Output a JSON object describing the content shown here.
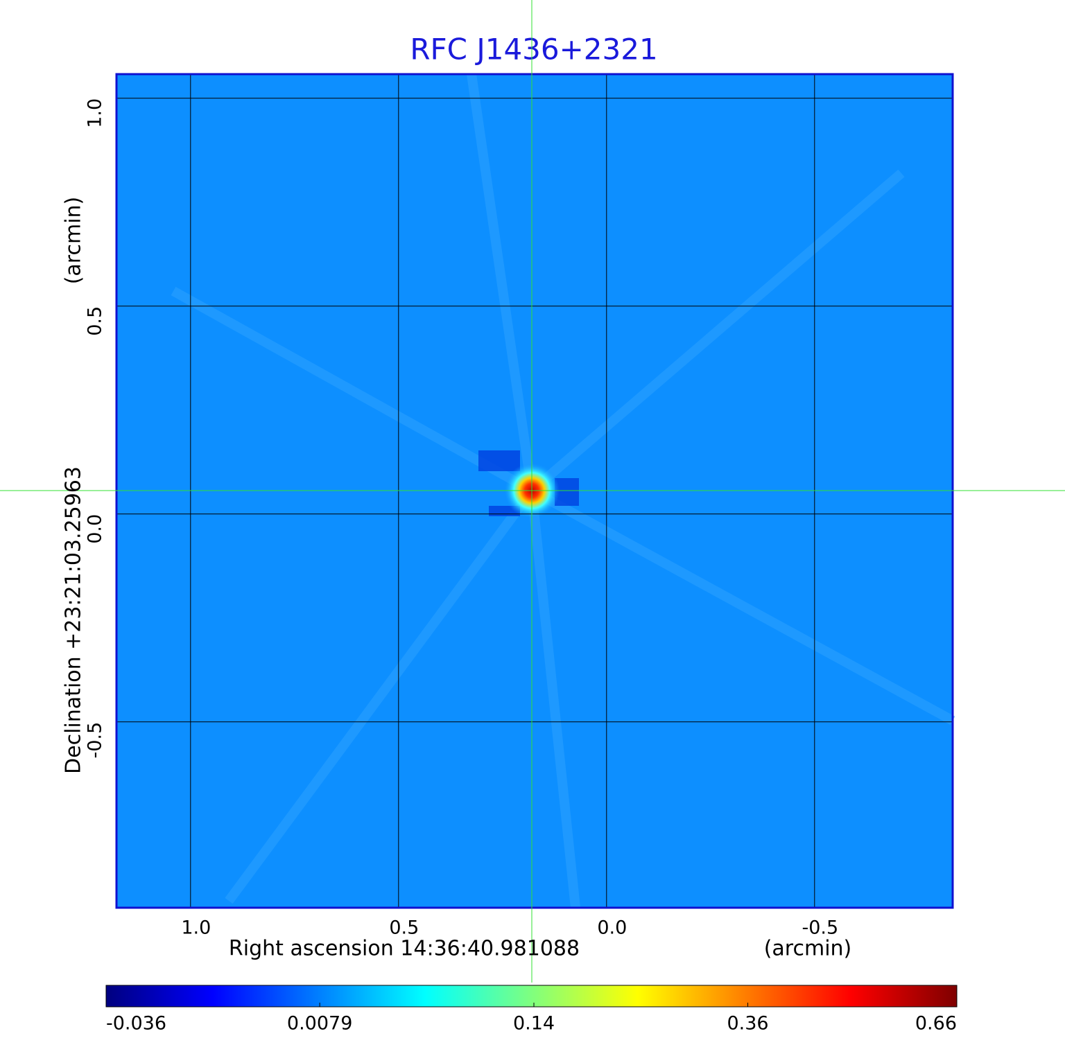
{
  "chart_data": {
    "type": "image",
    "title": "RFC J1436+2321",
    "x_label": "Right ascension  14:36:40.981088",
    "x_unit": "(arcmin)",
    "y_label": "Declination  +23:21:03.25963",
    "y_unit": "(arcmin)",
    "xlim": [
      1.178,
      -0.832
    ],
    "ylim": [
      -0.947,
      1.058
    ],
    "xticks": [
      {
        "value": 1,
        "label": "1.0"
      },
      0.5,
      {
        "value": 0,
        "label": "0.0"
      },
      -0.5
    ],
    "yticks": [
      {
        "value": 1,
        "label": "1.0"
      },
      0.5,
      {
        "value": 0,
        "label": "0.0"
      },
      -0.5
    ],
    "grid": true,
    "colorbar": {
      "colormap": "jet",
      "scale": "sqrt",
      "clim": [
        -0.036,
        0.66
      ],
      "ticks": [
        -0.036,
        0.0079,
        0.14,
        0.36,
        0.66
      ]
    }
  }
}
